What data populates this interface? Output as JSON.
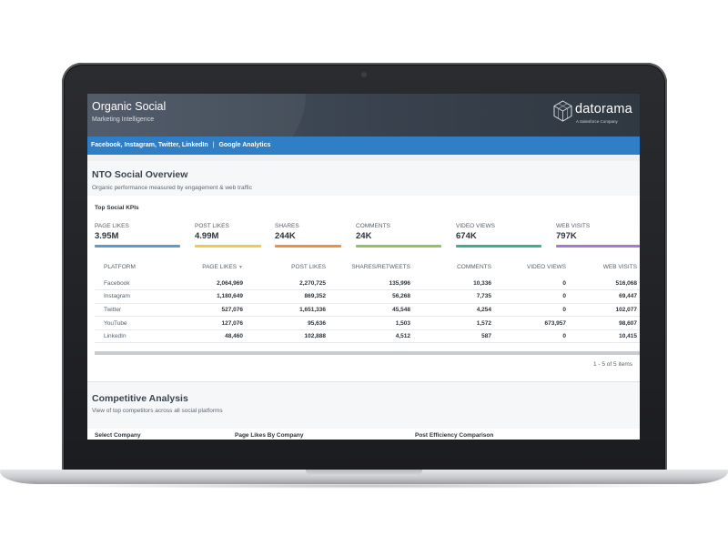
{
  "header": {
    "title": "Organic Social",
    "subtitle": "Marketing Intelligence",
    "brand": {
      "name": "datorama",
      "tagline": "A Salesforce Company",
      "logo_icon": "cube-logo-icon"
    }
  },
  "nav": {
    "links": [
      "Facebook, Instagram, Twitter, LinkedIn",
      "Google Analytics"
    ],
    "separator": "|"
  },
  "overview": {
    "title": "NTO Social Overview",
    "description": "Organic performance measured by engagement & web traffic"
  },
  "kpis": {
    "heading": "Top Social KPIs",
    "items": [
      {
        "label": "PAGE LIKES",
        "value": "3.95M",
        "color": "#5b9bd5"
      },
      {
        "label": "POST LIKES",
        "value": "4.99M",
        "color": "#f2c94c"
      },
      {
        "label": "SHARES",
        "value": "244K",
        "color": "#ef8f43"
      },
      {
        "label": "COMMENTS",
        "value": "24K",
        "color": "#8dc55f"
      },
      {
        "label": "VIDEO VIEWS",
        "value": "674K",
        "color": "#3fae8c"
      },
      {
        "label": "WEB VISITS",
        "value": "797K",
        "color": "#a37bd6"
      }
    ]
  },
  "table": {
    "columns": [
      "PLATFORM",
      "PAGE LIKES",
      "POST LIKES",
      "SHARES/RETWEETS",
      "COMMENTS",
      "VIDEO VIEWS",
      "WEB VISITS"
    ],
    "sort_icon": "sort-down-icon",
    "rows": [
      [
        "Facebook",
        "2,064,969",
        "2,270,725",
        "135,996",
        "10,336",
        "0",
        "516,068"
      ],
      [
        "Instagram",
        "1,180,649",
        "869,352",
        "56,268",
        "7,735",
        "0",
        "69,447"
      ],
      [
        "Twitter",
        "527,076",
        "1,651,336",
        "45,548",
        "4,254",
        "0",
        "102,077"
      ],
      [
        "YouTube",
        "127,076",
        "95,636",
        "1,503",
        "1,572",
        "673,957",
        "98,607"
      ],
      [
        "LinkedIn",
        "48,460",
        "102,888",
        "4,512",
        "587",
        "0",
        "10,415"
      ]
    ],
    "pager": "1 - 5 of 5 items"
  },
  "competitive": {
    "title": "Competitive Analysis",
    "description": "View of top competitors across all social platforms",
    "columns": [
      "Select Company",
      "Page Likes By Company",
      "Post Efficiency Comparison"
    ]
  }
}
